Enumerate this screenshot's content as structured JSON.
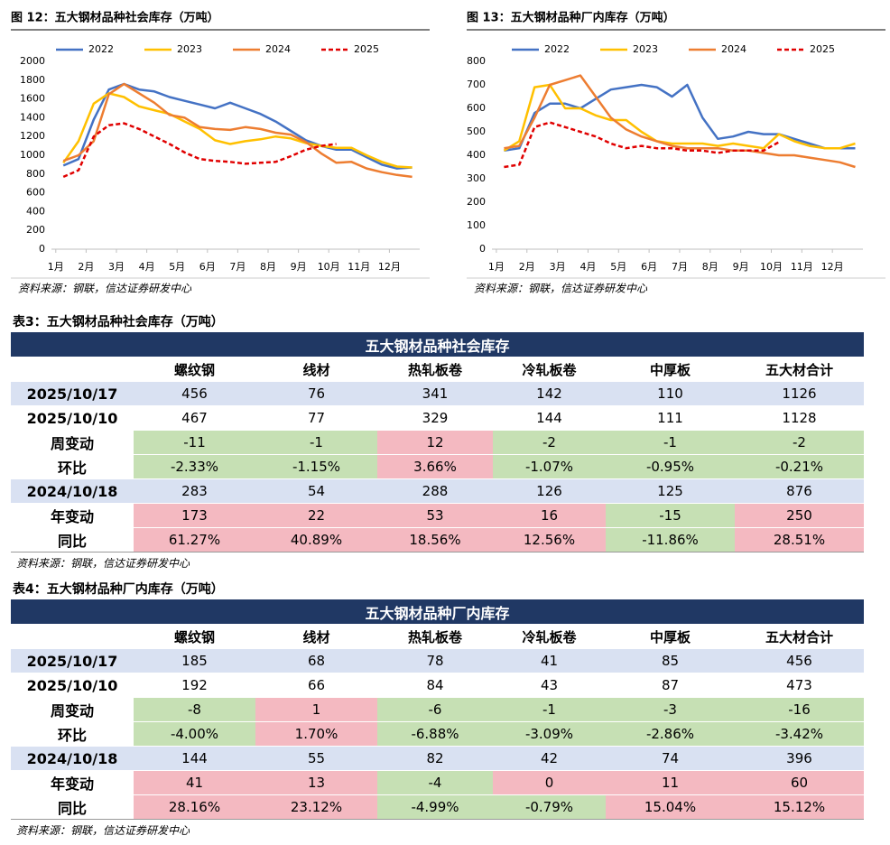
{
  "chart_data": [
    {
      "type": "line",
      "title": "图 12：五大钢材品种社会库存（万吨）",
      "source": "资料来源：钢联，信达证券研发中心",
      "legend": "top",
      "grid": false,
      "x": [
        1.25,
        1.75,
        2.25,
        2.75,
        3.25,
        3.75,
        4.25,
        4.75,
        5.25,
        5.75,
        6.25,
        6.75,
        7.25,
        7.75,
        8.25,
        8.75,
        9.25,
        9.75,
        10.25,
        10.75,
        11.25,
        11.75,
        12.25,
        12.75
      ],
      "xlim": [
        0.5,
        13
      ],
      "xticks": [
        {
          "value": 1,
          "label": "1月"
        },
        {
          "value": 2,
          "label": "2月"
        },
        {
          "value": 3,
          "label": "3月"
        },
        {
          "value": 4,
          "label": "4月"
        },
        {
          "value": 5,
          "label": "5月"
        },
        {
          "value": 6,
          "label": "6月"
        },
        {
          "value": 7,
          "label": "7月"
        },
        {
          "value": 8,
          "label": "8月"
        },
        {
          "value": 9,
          "label": "9月"
        },
        {
          "value": 10,
          "label": "10月"
        },
        {
          "value": 11,
          "label": "11月"
        },
        {
          "value": 12,
          "label": "12月"
        }
      ],
      "ylim": [
        0,
        2000
      ],
      "yticks": [
        0,
        200,
        400,
        600,
        800,
        1000,
        1200,
        1400,
        1600,
        1800,
        2000
      ],
      "series": [
        {
          "name": "2022",
          "color": "#4472c4",
          "dashed": false,
          "values": [
            890,
            960,
            1380,
            1700,
            1760,
            1700,
            1680,
            1620,
            1580,
            1540,
            1500,
            1560,
            1500,
            1440,
            1360,
            1260,
            1160,
            1100,
            1060,
            1060,
            980,
            900,
            860,
            870
          ]
        },
        {
          "name": "2023",
          "color": "#ffc000",
          "dashed": false,
          "values": [
            920,
            1150,
            1550,
            1660,
            1620,
            1520,
            1480,
            1440,
            1360,
            1280,
            1160,
            1120,
            1150,
            1170,
            1200,
            1180,
            1130,
            1100,
            1080,
            1080,
            1000,
            930,
            880,
            870
          ]
        },
        {
          "name": "2024",
          "color": "#ed7d31",
          "dashed": false,
          "values": [
            940,
            1000,
            1150,
            1650,
            1760,
            1660,
            1560,
            1430,
            1400,
            1300,
            1280,
            1270,
            1300,
            1280,
            1240,
            1220,
            1140,
            1020,
            920,
            930,
            860,
            820,
            790,
            770
          ]
        },
        {
          "name": "2025",
          "color": "#e00000",
          "dashed": true,
          "values": [
            770,
            840,
            1200,
            1320,
            1340,
            1280,
            1200,
            1120,
            1030,
            960,
            940,
            930,
            910,
            920,
            930,
            990,
            1060,
            1100,
            1120,
            null,
            null,
            null,
            null,
            null
          ]
        }
      ]
    },
    {
      "type": "line",
      "title": "图 13：五大钢材品种厂内库存（万吨）",
      "source": "资料来源：钢联，信达证券研发中心",
      "legend": "top",
      "grid": false,
      "x": [
        1.25,
        1.75,
        2.25,
        2.75,
        3.25,
        3.75,
        4.25,
        4.75,
        5.25,
        5.75,
        6.25,
        6.75,
        7.25,
        7.75,
        8.25,
        8.75,
        9.25,
        9.75,
        10.25,
        10.75,
        11.25,
        11.75,
        12.25,
        12.75
      ],
      "xlim": [
        0.5,
        13
      ],
      "xticks": [
        {
          "value": 1,
          "label": "1月"
        },
        {
          "value": 2,
          "label": "2月"
        },
        {
          "value": 3,
          "label": "3月"
        },
        {
          "value": 4,
          "label": "4月"
        },
        {
          "value": 5,
          "label": "5月"
        },
        {
          "value": 6,
          "label": "6月"
        },
        {
          "value": 7,
          "label": "7月"
        },
        {
          "value": 8,
          "label": "8月"
        },
        {
          "value": 9,
          "label": "9月"
        },
        {
          "value": 10,
          "label": "10月"
        },
        {
          "value": 11,
          "label": "11月"
        },
        {
          "value": 12,
          "label": "12月"
        }
      ],
      "ylim": [
        0,
        800
      ],
      "yticks": [
        0,
        100,
        200,
        300,
        400,
        500,
        600,
        700,
        800
      ],
      "series": [
        {
          "name": "2022",
          "color": "#4472c4",
          "dashed": false,
          "values": [
            420,
            430,
            580,
            620,
            620,
            600,
            640,
            680,
            690,
            700,
            690,
            650,
            700,
            560,
            470,
            480,
            500,
            490,
            490,
            470,
            450,
            430,
            430,
            430
          ]
        },
        {
          "name": "2023",
          "color": "#ffc000",
          "dashed": false,
          "values": [
            420,
            460,
            690,
            700,
            600,
            600,
            570,
            550,
            550,
            500,
            460,
            450,
            450,
            450,
            440,
            450,
            440,
            430,
            490,
            460,
            440,
            430,
            430,
            450
          ]
        },
        {
          "name": "2024",
          "color": "#ed7d31",
          "dashed": false,
          "values": [
            430,
            440,
            560,
            700,
            720,
            740,
            650,
            560,
            510,
            480,
            460,
            440,
            430,
            430,
            430,
            420,
            420,
            410,
            400,
            400,
            390,
            380,
            370,
            350
          ]
        },
        {
          "name": "2025",
          "color": "#e00000",
          "dashed": true,
          "values": [
            350,
            360,
            520,
            540,
            520,
            500,
            480,
            450,
            430,
            440,
            430,
            430,
            420,
            420,
            410,
            420,
            420,
            420,
            456,
            null,
            null,
            null,
            null,
            null
          ]
        }
      ]
    }
  ],
  "tables": [
    {
      "caption": "表3：五大钢材品种社会库存（万吨）",
      "title": "五大钢材品种社会库存",
      "columns": [
        "螺纹钢",
        "线材",
        "热轧板卷",
        "冷轧板卷",
        "中厚板",
        "五大材合计"
      ],
      "rows": [
        {
          "label": "2025/10/17",
          "cells": [
            "456",
            "76",
            "341",
            "142",
            "110",
            "1126"
          ]
        },
        {
          "label": "2025/10/10",
          "cells": [
            "467",
            "77",
            "329",
            "144",
            "111",
            "1128"
          ]
        },
        {
          "label": "周变动",
          "cells": [
            "-11",
            "-1",
            "12",
            "-2",
            "-1",
            "-2"
          ]
        },
        {
          "label": "环比",
          "cells": [
            "-2.33%",
            "-1.15%",
            "3.66%",
            "-1.07%",
            "-0.95%",
            "-0.21%"
          ]
        },
        {
          "label": "2024/10/18",
          "cells": [
            "283",
            "54",
            "288",
            "126",
            "125",
            "876"
          ]
        },
        {
          "label": "年变动",
          "cells": [
            "173",
            "22",
            "53",
            "16",
            "-15",
            "250"
          ]
        },
        {
          "label": "同比",
          "cells": [
            "61.27%",
            "40.89%",
            "18.56%",
            "12.56%",
            "-11.86%",
            "28.51%"
          ]
        }
      ],
      "source": "资料来源：钢联，信达证券研发中心"
    },
    {
      "caption": "表4：五大钢材品种厂内库存（万吨）",
      "title": "五大钢材品种厂内库存",
      "columns": [
        "螺纹钢",
        "线材",
        "热轧板卷",
        "冷轧板卷",
        "中厚板",
        "五大材合计"
      ],
      "rows": [
        {
          "label": "2025/10/17",
          "cells": [
            "185",
            "68",
            "78",
            "41",
            "85",
            "456"
          ]
        },
        {
          "label": "2025/10/10",
          "cells": [
            "192",
            "66",
            "84",
            "43",
            "87",
            "473"
          ]
        },
        {
          "label": "周变动",
          "cells": [
            "-8",
            "1",
            "-6",
            "-1",
            "-3",
            "-16"
          ]
        },
        {
          "label": "环比",
          "cells": [
            "-4.00%",
            "1.70%",
            "-6.88%",
            "-3.09%",
            "-2.86%",
            "-3.42%"
          ]
        },
        {
          "label": "2024/10/18",
          "cells": [
            "144",
            "55",
            "82",
            "42",
            "74",
            "396"
          ]
        },
        {
          "label": "年变动",
          "cells": [
            "41",
            "13",
            "-4",
            "0",
            "11",
            "60"
          ]
        },
        {
          "label": "同比",
          "cells": [
            "28.16%",
            "23.12%",
            "-4.99%",
            "-0.79%",
            "15.04%",
            "15.12%"
          ]
        }
      ],
      "source": "资料来源：钢联，信达证券研发中心"
    }
  ]
}
